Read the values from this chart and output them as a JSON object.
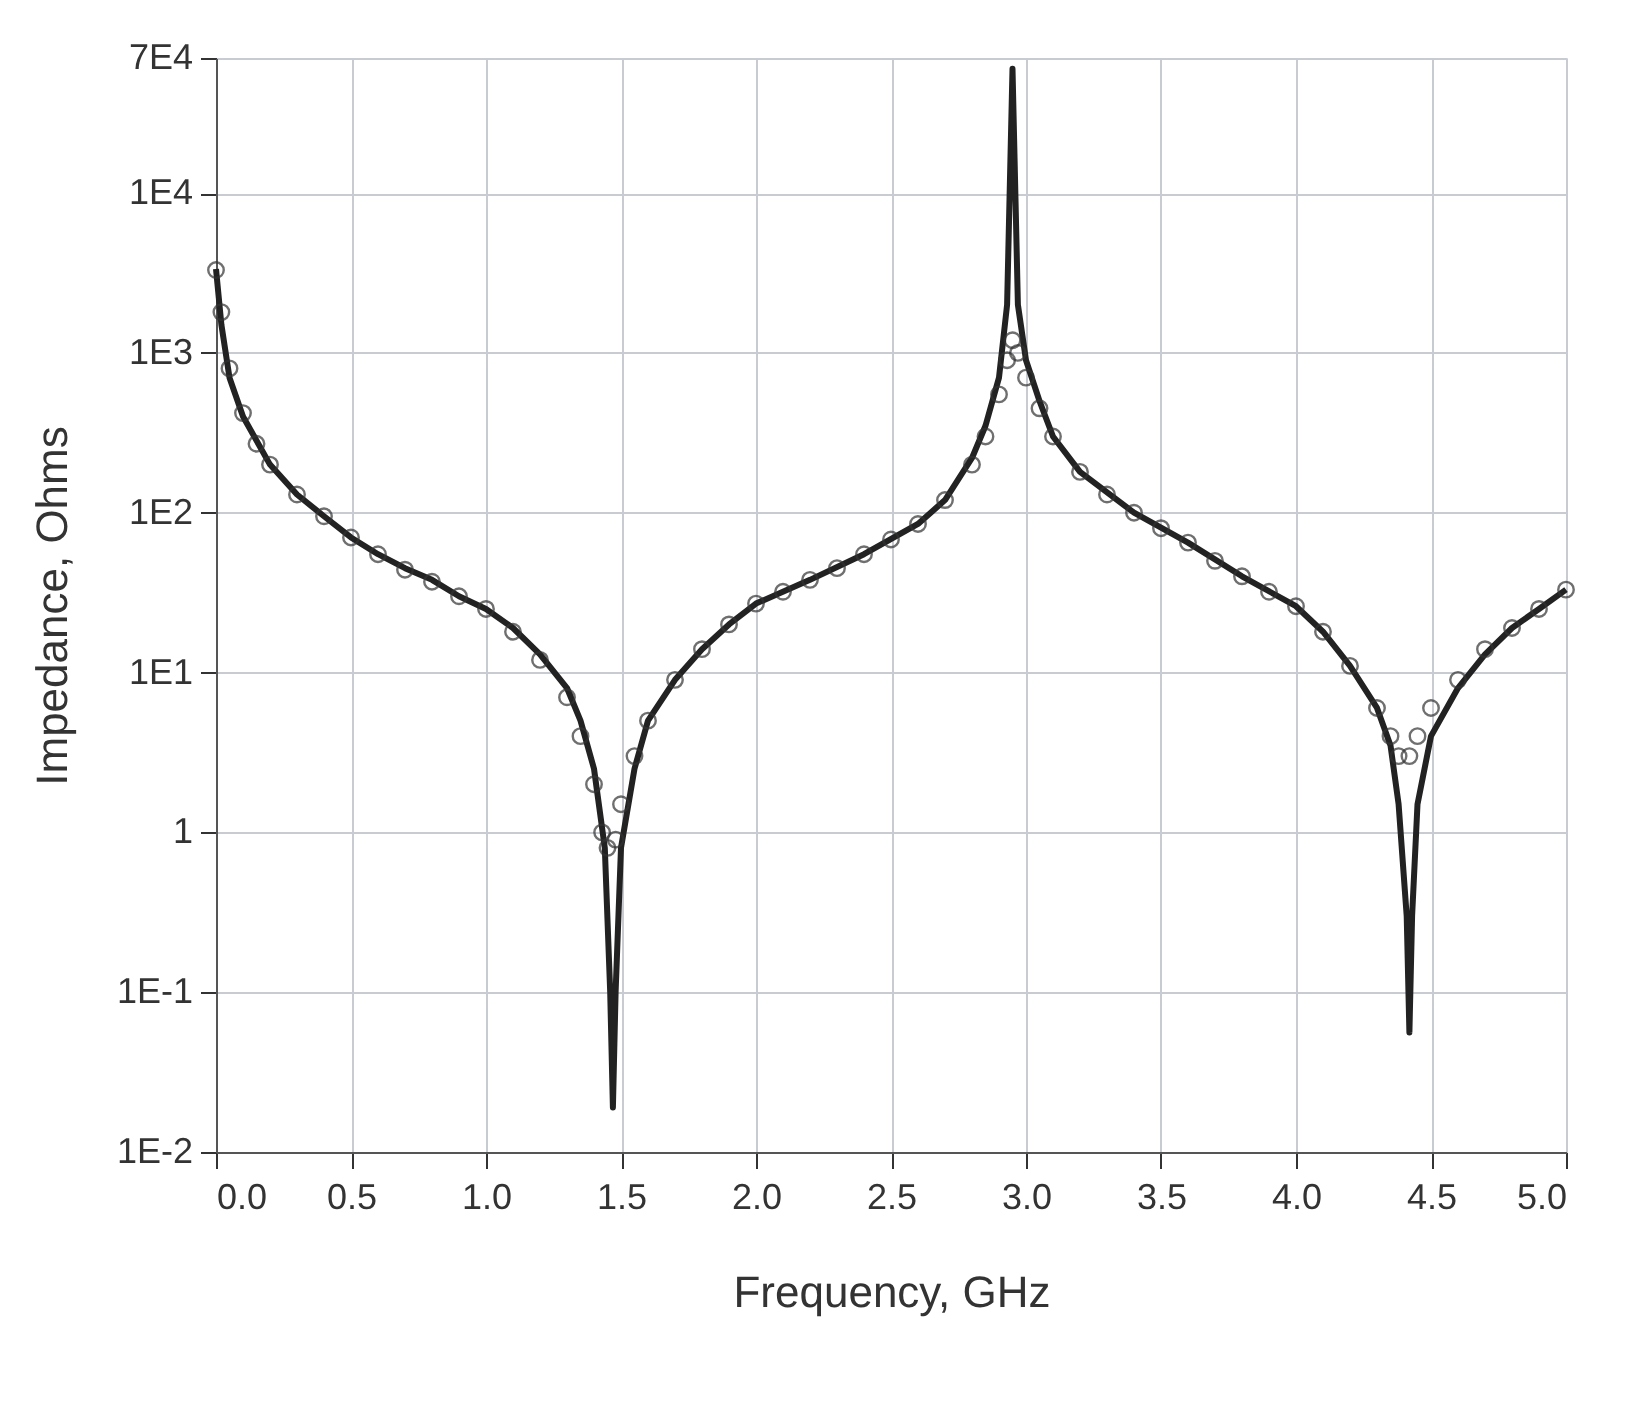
{
  "chart_data": {
    "type": "line",
    "xlabel": "Frequency, GHz",
    "ylabel": "Impedance, Ohms",
    "log": "y",
    "grid": true,
    "xlim": [
      0,
      5
    ],
    "ylim": [
      0.01,
      70000
    ],
    "xticks": [
      {
        "value": 0,
        "label": "0.0"
      },
      {
        "value": 0.5,
        "label": "0.5"
      },
      {
        "value": 1,
        "label": "1.0"
      },
      {
        "value": 1.5,
        "label": "1.5"
      },
      {
        "value": 2,
        "label": "2.0"
      },
      {
        "value": 2.5,
        "label": "2.5"
      },
      {
        "value": 3,
        "label": "3.0"
      },
      {
        "value": 3.5,
        "label": "3.5"
      },
      {
        "value": 4,
        "label": "4.0"
      },
      {
        "value": 4.5,
        "label": "4.5"
      },
      {
        "value": 5,
        "label": "5.0"
      }
    ],
    "yticks": [
      {
        "value": 0.01,
        "label": "1E-2"
      },
      {
        "value": 0.1,
        "label": "1E-1"
      },
      1,
      {
        "value": 10,
        "label": "1E1"
      },
      {
        "value": 100,
        "label": "1E2"
      },
      {
        "value": 1000,
        "label": "1E3"
      },
      {
        "value": 10000,
        "label": "1E4"
      },
      {
        "value": 70000,
        "label": "7E4"
      }
    ],
    "series": [
      {
        "color": "#222222",
        "line_style": "solid",
        "marker": "none",
        "x": [
          0.0,
          0.02,
          0.05,
          0.1,
          0.2,
          0.3,
          0.4,
          0.5,
          0.6,
          0.7,
          0.8,
          0.9,
          1.0,
          1.1,
          1.2,
          1.3,
          1.35,
          1.4,
          1.44,
          1.46,
          1.47,
          1.48,
          1.5,
          1.55,
          1.6,
          1.7,
          1.8,
          1.9,
          2.0,
          2.2,
          2.4,
          2.6,
          2.7,
          2.8,
          2.85,
          2.9,
          2.93,
          2.95,
          2.97,
          3.0,
          3.05,
          3.1,
          3.2,
          3.4,
          3.6,
          3.8,
          4.0,
          4.1,
          4.2,
          4.3,
          4.35,
          4.38,
          4.41,
          4.42,
          4.43,
          4.45,
          4.5,
          4.6,
          4.7,
          4.8,
          4.9,
          5.0
        ],
        "values": [
          3350,
          1500,
          700,
          400,
          200,
          130,
          95,
          70,
          55,
          45,
          38,
          30,
          25,
          19,
          13,
          8,
          5,
          2.5,
          0.8,
          0.1,
          0.019,
          0.1,
          0.8,
          2.5,
          5,
          9,
          14,
          20,
          27,
          38,
          55,
          85,
          120,
          220,
          350,
          700,
          2000,
          60000,
          2000,
          900,
          500,
          300,
          180,
          100,
          65,
          40,
          26,
          18,
          11,
          6,
          3.5,
          1.5,
          0.3,
          0.056,
          0.3,
          1.5,
          4,
          8,
          13,
          19,
          25,
          33
        ]
      },
      {
        "type": "scatter",
        "color": "#333333",
        "marker": "circle",
        "x": [
          0.0,
          0.02,
          0.05,
          0.1,
          0.15,
          0.2,
          0.3,
          0.4,
          0.5,
          0.6,
          0.7,
          0.8,
          0.9,
          1.0,
          1.1,
          1.2,
          1.3,
          1.35,
          1.4,
          1.43,
          1.45,
          1.48,
          1.5,
          1.55,
          1.6,
          1.7,
          1.8,
          1.9,
          2.0,
          2.1,
          2.2,
          2.3,
          2.4,
          2.5,
          2.6,
          2.7,
          2.8,
          2.85,
          2.9,
          2.93,
          2.95,
          2.97,
          3.0,
          3.05,
          3.1,
          3.2,
          3.3,
          3.4,
          3.5,
          3.6,
          3.7,
          3.8,
          3.9,
          4.0,
          4.1,
          4.2,
          4.3,
          4.35,
          4.38,
          4.42,
          4.45,
          4.5,
          4.6,
          4.7,
          4.8,
          4.9,
          5.0
        ],
        "values": [
          3300,
          1800,
          800,
          420,
          270,
          200,
          130,
          95,
          70,
          55,
          44,
          37,
          30,
          25,
          18,
          12,
          7,
          4,
          2,
          1.0,
          0.8,
          0.9,
          1.5,
          3,
          5,
          9,
          14,
          20,
          27,
          32,
          38,
          45,
          55,
          68,
          85,
          120,
          200,
          300,
          550,
          900,
          1200,
          1000,
          700,
          450,
          300,
          180,
          130,
          100,
          80,
          65,
          50,
          40,
          32,
          26,
          18,
          11,
          6,
          4,
          3,
          3,
          4,
          6,
          9,
          14,
          19,
          25,
          33
        ]
      }
    ]
  }
}
